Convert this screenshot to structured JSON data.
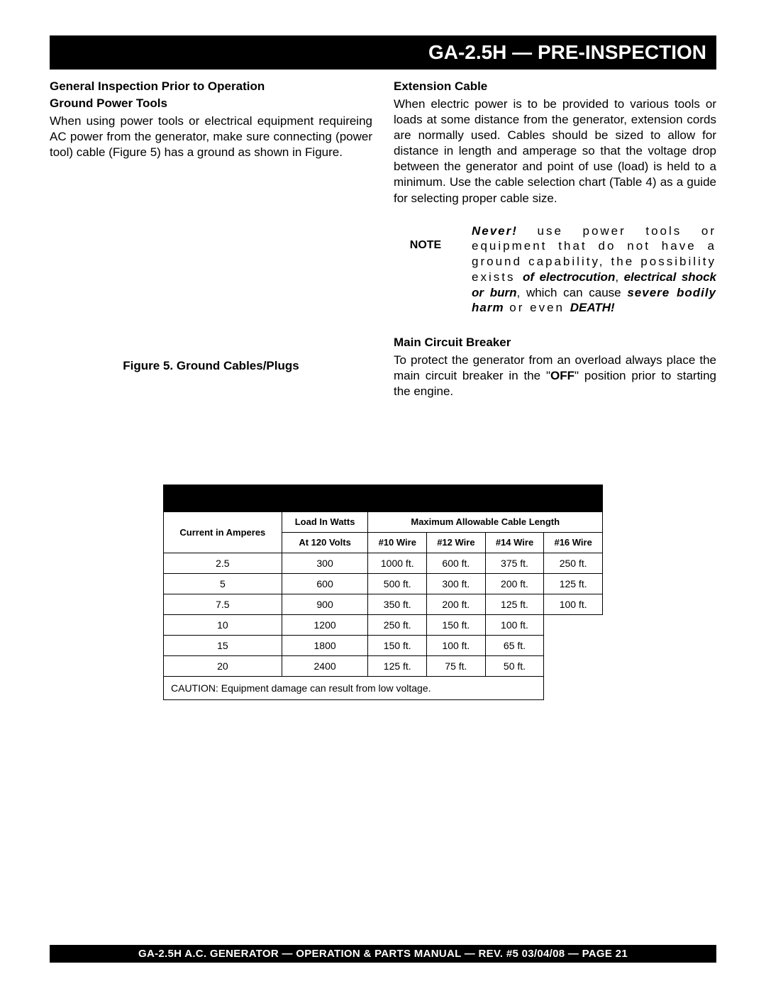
{
  "header": {
    "title": "GA-2.5H — PRE-INSPECTION"
  },
  "left": {
    "heading1": "General Inspection Prior to Operation",
    "heading2": "Ground Power Tools",
    "para": "When using power tools or electrical equipment requireing AC power from the generator, make sure connecting (power tool) cable (Figure 5) has a ground as shown in Figure.",
    "figure_caption": "Figure  5. Ground Cables/Plugs"
  },
  "right": {
    "ext_heading": "Extension Cable",
    "ext_para": "When electric power is to be provided to various tools or loads at some distance from the generator, extension cords are normally used. Cables should be sized to allow for distance in length and amperage so that the voltage drop between the generator and point of use (load) is held  to a minimum. Use the cable selection chart (Table 4) as a guide for selecting proper cable size.",
    "note_label": "NOTE",
    "note": {
      "never": "Never!",
      "seg1": " use power tools or equipment that do not have a ground capability, the possibility exists ",
      "boldital1": "of electrocution",
      "comma": ", ",
      "boldital2": "electrical shock or burn",
      "seg2": ", which can cause ",
      "boldital3": "severe bodily harm",
      "seg3": " or even ",
      "death": "DEATH!"
    },
    "mcb_heading": "Main Circuit Breaker",
    "mcb_para_pre": "To protect the generator from an overload always place the main circuit breaker  in the \"",
    "mcb_off": "OFF",
    "mcb_para_post": "\" position prior to starting the engine."
  },
  "table": {
    "header_current": "Current in Amperes",
    "header_load1": "Load In Watts",
    "header_load2": "At 120 Volts",
    "header_max": "Maximum Allowable Cable Length",
    "wires": [
      "#10 Wire",
      "#12 Wire",
      "#14 Wire",
      "#16 Wire"
    ],
    "rows": [
      {
        "amp": "2.5",
        "watts": "300",
        "v": [
          "1000 ft.",
          "600 ft.",
          "375 ft.",
          "250 ft."
        ]
      },
      {
        "amp": "5",
        "watts": "600",
        "v": [
          "500 ft.",
          "300 ft.",
          "200 ft.",
          "125 ft."
        ]
      },
      {
        "amp": "7.5",
        "watts": "900",
        "v": [
          "350 ft.",
          "200 ft.",
          "125 ft.",
          "100 ft."
        ]
      },
      {
        "amp": "10",
        "watts": "1200",
        "v": [
          "250 ft.",
          "150 ft.",
          "100 ft.",
          ""
        ]
      },
      {
        "amp": "15",
        "watts": "1800",
        "v": [
          "150 ft.",
          "100 ft.",
          "65 ft.",
          ""
        ]
      },
      {
        "amp": "20",
        "watts": "2400",
        "v": [
          "125 ft.",
          "75 ft.",
          "50 ft.",
          ""
        ]
      }
    ],
    "caution": "CAUTION: Equipment damage can result from low voltage."
  },
  "footer": {
    "text": "GA-2.5H A.C. GENERATOR — OPERATION  & PARTS  MANUAL  — REV. #5  03/04/08 — PAGE 21"
  }
}
